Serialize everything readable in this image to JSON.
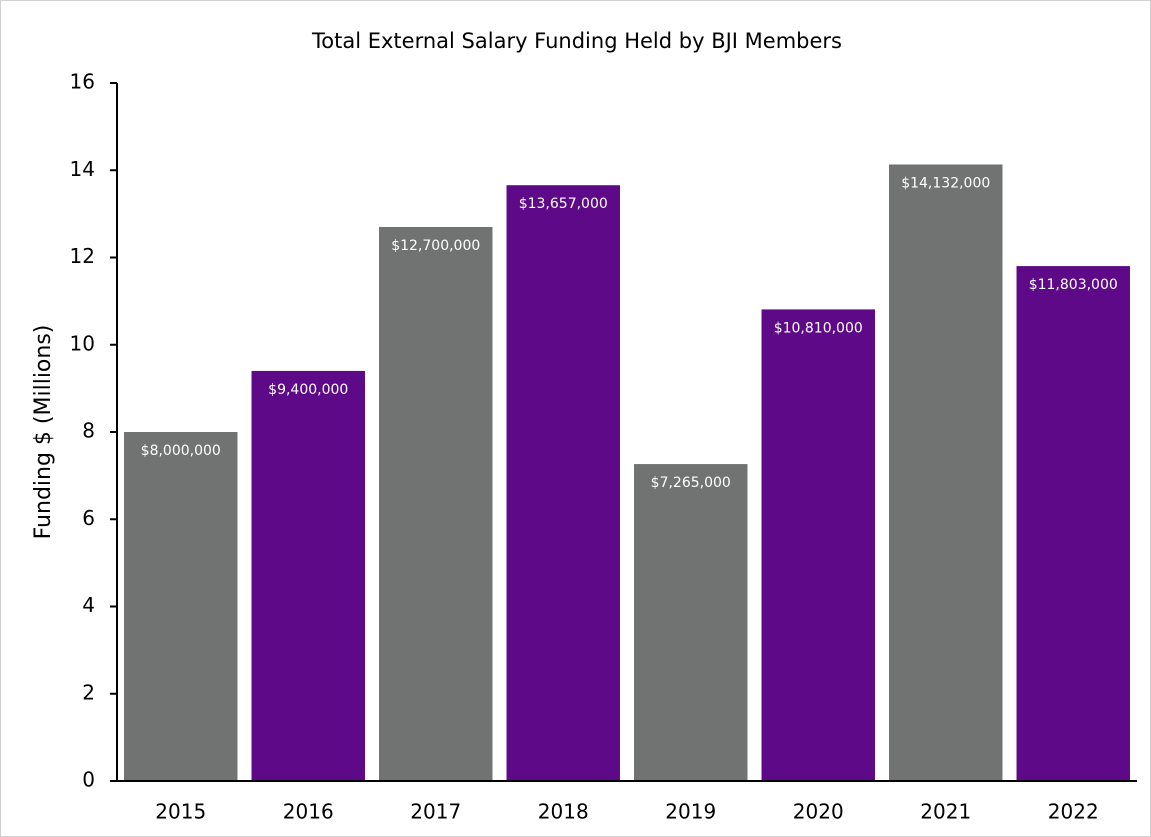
{
  "chart_data": {
    "type": "bar",
    "title": "Total External Salary Funding Held by BJI Members",
    "ylabel": "Funding $ (Millions)",
    "categories": [
      "2015",
      "2016",
      "2017",
      "2018",
      "2019",
      "2020",
      "2021",
      "2022"
    ],
    "values": [
      8,
      9.4,
      12.7,
      13.657,
      7.265,
      10.81,
      14.132,
      11.803
    ],
    "value_labels": [
      "$8,000,000",
      "$9,400,000",
      "$12,700,000",
      "$13,657,000",
      "$7,265,000",
      "$10,810,000",
      "$14,132,000",
      "$11,803,000"
    ],
    "colors": [
      "#717272",
      "#5e0a88",
      "#717272",
      "#5e0a88",
      "#717272",
      "#5e0a88",
      "#717272",
      "#5e0a88"
    ],
    "ylim": [
      0,
      16
    ],
    "yticks": [
      0,
      2,
      4,
      6,
      8,
      10,
      12,
      14,
      16
    ],
    "grid": false
  }
}
